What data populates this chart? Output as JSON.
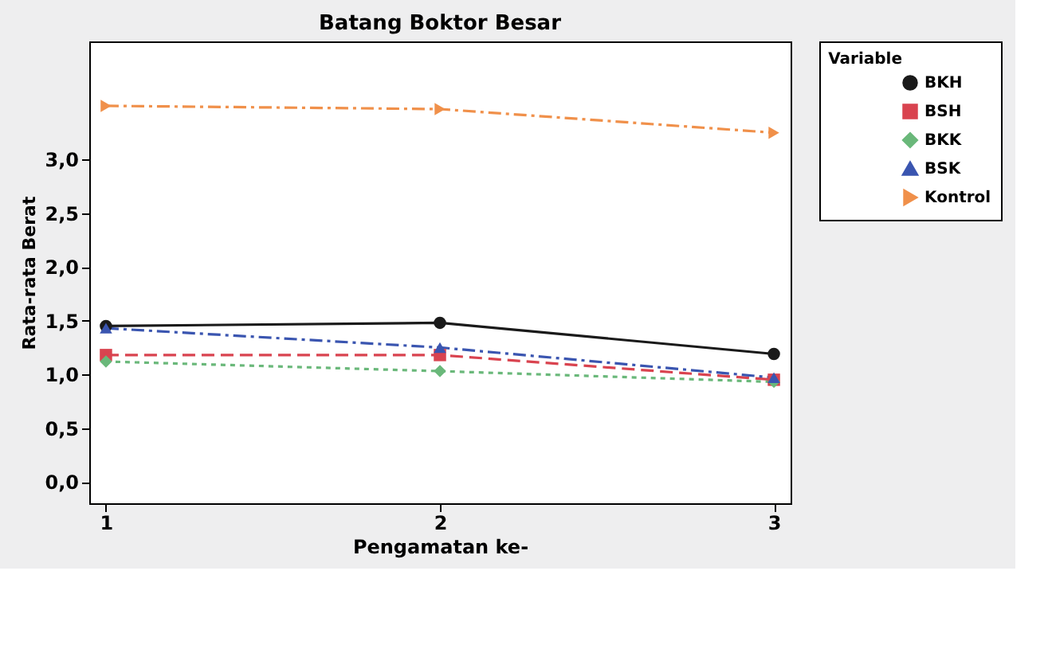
{
  "chart_data": {
    "type": "line",
    "title": "Batang Boktor Besar",
    "xlabel": "Pengamatan ke-",
    "ylabel": "Rata-rata Berat",
    "legend_title": "Variable",
    "x": [
      1,
      2,
      3
    ],
    "series": [
      {
        "name": "BKH",
        "color": "#1a1a1a",
        "values": [
          1.45,
          1.48,
          1.19
        ],
        "marker": "circle",
        "line_style": "solid"
      },
      {
        "name": "BSH",
        "color": "#d9434f",
        "values": [
          1.18,
          1.18,
          0.95
        ],
        "marker": "square",
        "line_style": "dashed"
      },
      {
        "name": "BKK",
        "color": "#6ab87a",
        "values": [
          1.12,
          1.03,
          0.93
        ],
        "marker": "diamond",
        "line_style": "dotted"
      },
      {
        "name": "BSK",
        "color": "#3a55b0",
        "values": [
          1.43,
          1.25,
          0.97
        ],
        "marker": "triangle",
        "line_style": "dashdot"
      },
      {
        "name": "Kontrol",
        "color": "#f0904a",
        "values": [
          3.5,
          3.47,
          3.25
        ],
        "marker": "triangle-right",
        "line_style": "dashdot"
      }
    ],
    "xlim": [
      0.95,
      3.05
    ],
    "xticks": [
      1,
      2,
      3
    ],
    "ylim": [
      -0.2,
      4.1
    ],
    "yticks": [
      {
        "value": 0,
        "label": "0,0"
      },
      {
        "value": 0.5,
        "label": "0,5"
      },
      {
        "value": 1,
        "label": "1,0"
      },
      {
        "value": 1.5,
        "label": "1,5"
      },
      {
        "value": 2,
        "label": "2,0"
      },
      {
        "value": 2.5,
        "label": "2,5"
      },
      {
        "value": 3,
        "label": "3,0"
      }
    ],
    "grid": false,
    "legend": "top right"
  }
}
